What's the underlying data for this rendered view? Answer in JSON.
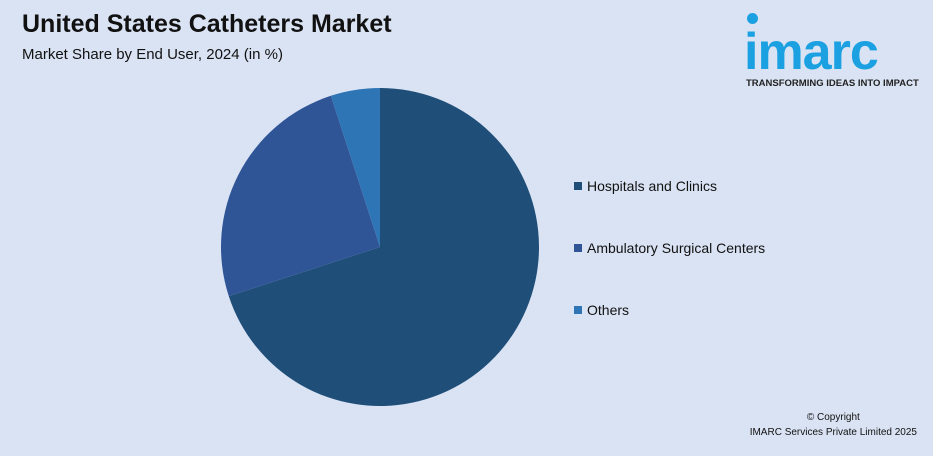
{
  "chart_data": {
    "type": "pie",
    "title": "United States Catheters Market",
    "subtitle": "Market Share by End User, 2024 (in %)",
    "categories": [
      "Hospitals and Clinics",
      "Ambulatory Surgical Centers",
      "Others"
    ],
    "values": [
      70,
      25,
      5
    ],
    "colors": [
      "#1f4e79",
      "#2f5597",
      "#2e75b6"
    ],
    "start_angle": "12 o'clock",
    "direction": "clockwise",
    "legend_position": "right"
  },
  "logo": {
    "word": "imarc",
    "tagline": "TRANSFORMING IDEAS INTO IMPACT",
    "color": "#1ba1e2"
  },
  "copyright": {
    "line1": "© Copyright",
    "line2": "IMARC Services Private Limited 2025"
  }
}
